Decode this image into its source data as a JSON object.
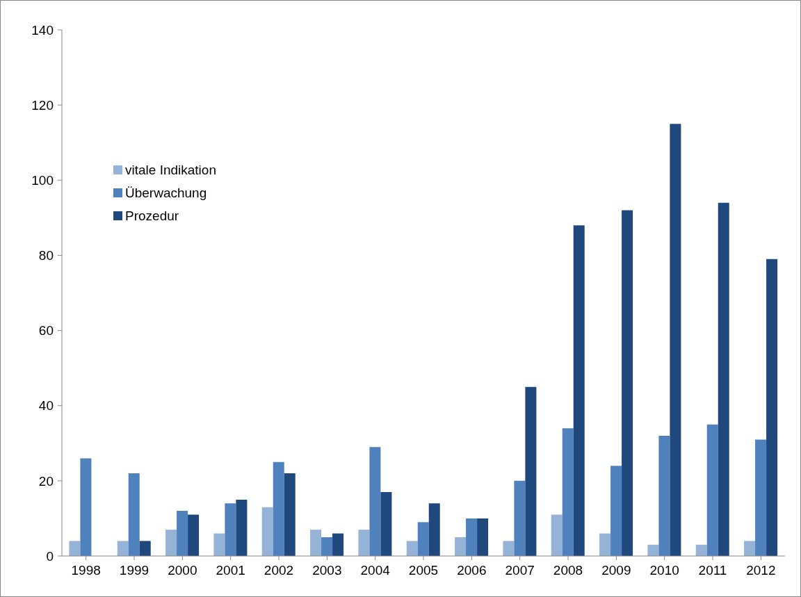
{
  "chart_data": {
    "type": "bar",
    "categories": [
      "1998",
      "1999",
      "2000",
      "2001",
      "2002",
      "2003",
      "2004",
      "2005",
      "2006",
      "2007",
      "2008",
      "2009",
      "2010",
      "2011",
      "2012"
    ],
    "series": [
      {
        "name": "vitale Indikation",
        "color": "#95b3d7",
        "values": [
          4,
          4,
          7,
          6,
          13,
          7,
          7,
          4,
          5,
          4,
          11,
          6,
          3,
          3,
          4
        ]
      },
      {
        "name": "Überwachung",
        "color": "#4f81bd",
        "values": [
          26,
          22,
          12,
          14,
          25,
          5,
          29,
          9,
          10,
          20,
          34,
          24,
          32,
          35,
          31
        ]
      },
      {
        "name": "Prozedur",
        "color": "#1f497d",
        "values": [
          null,
          4,
          11,
          15,
          22,
          6,
          17,
          14,
          10,
          45,
          88,
          92,
          115,
          94,
          79
        ]
      }
    ],
    "ylim": [
      0,
      140
    ],
    "yticks": [
      0,
      20,
      40,
      60,
      80,
      100,
      120,
      140
    ],
    "grid": false,
    "legend": "top left"
  }
}
